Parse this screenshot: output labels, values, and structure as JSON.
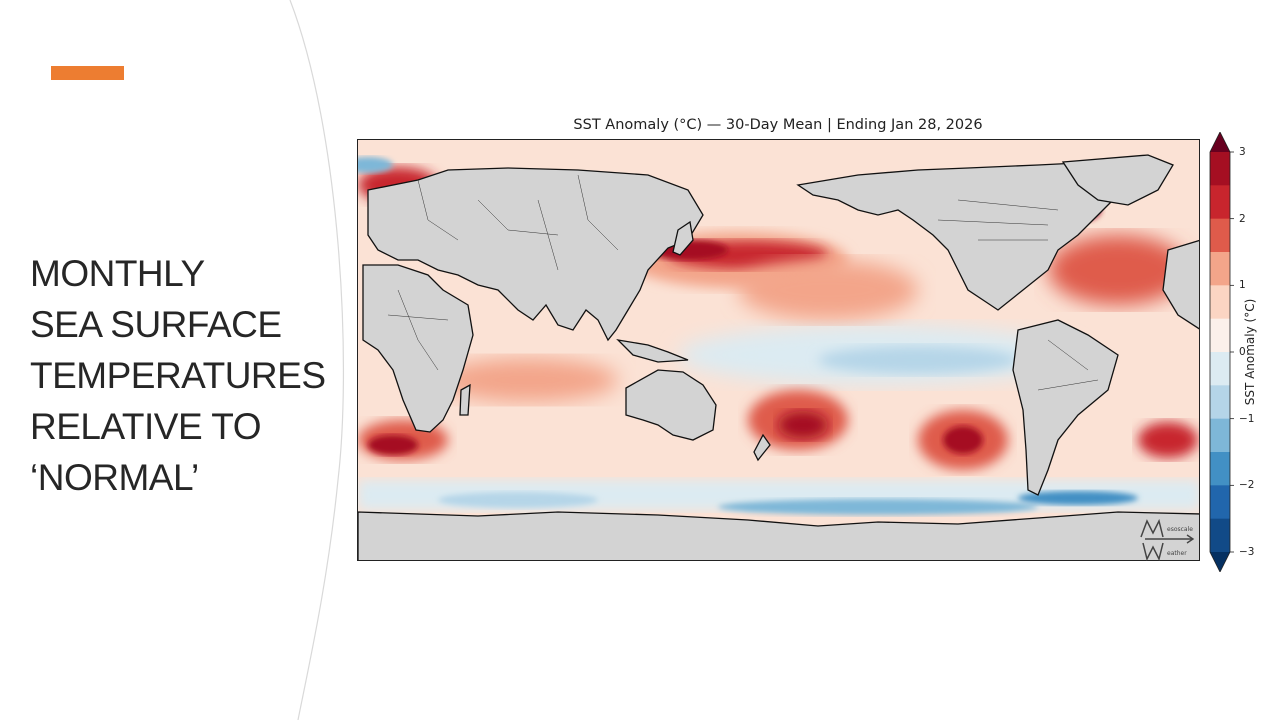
{
  "slide": {
    "title_lines": [
      "MONTHLY",
      "SEA SURFACE",
      "TEMPERATURES",
      "RELATIVE TO",
      "‘NORMAL’"
    ],
    "accent_color": "#ed7d31",
    "panel_curve_color": "#d9d9d9"
  },
  "map": {
    "title": "SST Anomaly (°C) — 30-Day Mean | Ending Jan 28, 2026",
    "land_color": "#d3d3d3",
    "projection_center": "Pacific (central longitude 180°)"
  },
  "colorbar": {
    "label": "SST Anomaly (°C)",
    "ticks": [
      "3",
      "2",
      "1",
      "0",
      "−1",
      "−2",
      "−3"
    ],
    "colors_top_to_bottom": [
      "#a50f22",
      "#c8252d",
      "#df5b4b",
      "#f3a58a",
      "#fbd5c3",
      "#fbf0ea",
      "#dcebf2",
      "#b5d5e8",
      "#7eb7d8",
      "#4290c4",
      "#2166ac",
      "#114a87"
    ],
    "over_color": "#67001f",
    "under_color": "#053061"
  },
  "watermark": {
    "logo": "Mesoscale Weather logo"
  }
}
